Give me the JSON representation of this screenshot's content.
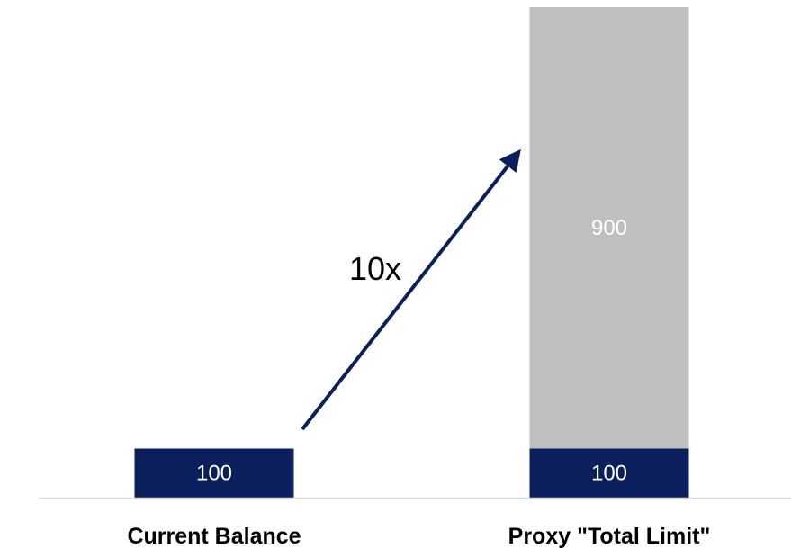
{
  "chart_data": {
    "type": "bar",
    "stacked": true,
    "categories": [
      "Current Balance",
      "Proxy \"Total Limit\""
    ],
    "series": [
      {
        "values": [
          100,
          100
        ],
        "color": "#0b1f5c",
        "label_color": "#ffffff"
      },
      {
        "values": [
          0,
          900
        ],
        "color": "#bfbfbf",
        "label_color": "#ffffff"
      }
    ],
    "data_labels": [
      [
        "100",
        "100"
      ],
      [
        "",
        "900"
      ]
    ],
    "ylim": [
      0,
      1000
    ],
    "grid": false,
    "legend": "none",
    "annotation": {
      "text": "10x",
      "from_category": 0,
      "to_category": 1,
      "arrow_color": "#0b1f5c"
    },
    "axis_color": "#d9d9d9"
  }
}
